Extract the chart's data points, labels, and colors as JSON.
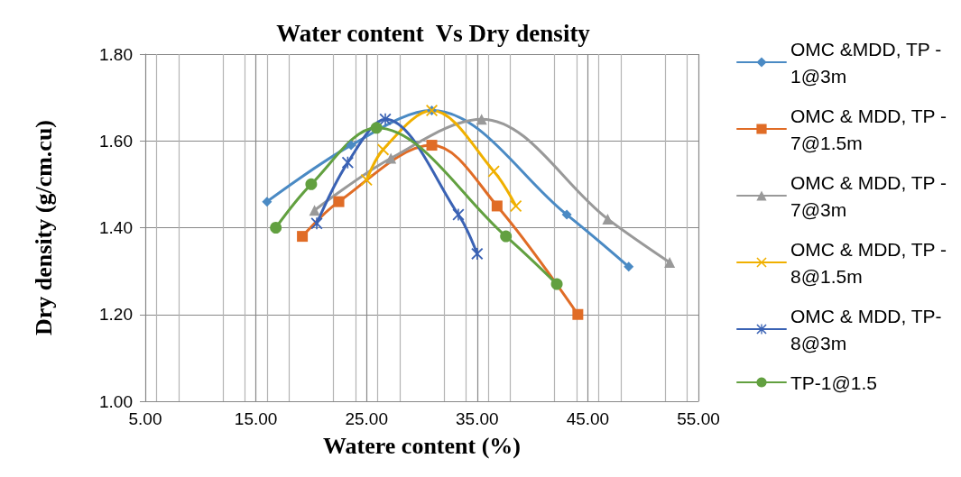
{
  "chart_data": {
    "type": "line",
    "title": "Water content  Vs Dry density",
    "xlabel": "Watere content (%)",
    "ylabel": "Dry density (g/cm.cu)",
    "xlim": [
      5,
      55
    ],
    "xticks": [
      {
        "value": 5,
        "label": "5.00"
      },
      {
        "value": 15,
        "label": "15.00"
      },
      {
        "value": 25,
        "label": "25.00"
      },
      {
        "value": 35,
        "label": "35.00"
      },
      {
        "value": 45,
        "label": "45.00"
      },
      {
        "value": 55,
        "label": "55.00"
      }
    ],
    "ylim": [
      1,
      1.8
    ],
    "yticks": [
      {
        "value": 1,
        "label": "1.00"
      },
      {
        "value": 1.2,
        "label": "1.20"
      },
      {
        "value": 1.4,
        "label": "1.40"
      },
      {
        "value": 1.6,
        "label": "1.60"
      },
      {
        "value": 1.8,
        "label": "1.80"
      }
    ],
    "grid": true,
    "legend": "right",
    "line_style": "solid",
    "series": [
      {
        "name": "OMC &MDD, TP - 1@3m",
        "color": "#4a8ac4",
        "marker": "diamond",
        "x": [
          16.0,
          23.6,
          30.9,
          43.1,
          48.7
        ],
        "values": [
          1.46,
          1.59,
          1.67,
          1.43,
          1.31
        ]
      },
      {
        "name": "OMC & MDD, TP - 7@1.5m",
        "color": "#e06c26",
        "marker": "square",
        "x": [
          19.2,
          22.5,
          30.9,
          36.8,
          44.1
        ],
        "values": [
          1.38,
          1.46,
          1.59,
          1.45,
          1.2
        ]
      },
      {
        "name": "OMC & MDD, TP - 7@3m",
        "color": "#999999",
        "marker": "triangle",
        "x": [
          20.3,
          27.2,
          35.4,
          46.8,
          52.4
        ],
        "values": [
          1.44,
          1.56,
          1.65,
          1.42,
          1.32
        ]
      },
      {
        "name": "OMC & MDD, TP - 8@1.5m",
        "color": "#f0b000",
        "marker": "cross",
        "x": [
          25.0,
          26.5,
          30.9,
          36.5,
          38.5
        ],
        "values": [
          1.51,
          1.58,
          1.67,
          1.53,
          1.45
        ]
      },
      {
        "name": "OMC & MDD, TP- 8@3m",
        "color": "#3a62b4",
        "marker": "star",
        "x": [
          20.5,
          23.3,
          26.7,
          33.3,
          35.0
        ],
        "values": [
          1.41,
          1.55,
          1.65,
          1.43,
          1.34
        ]
      },
      {
        "name": "TP-1@1.5",
        "color": "#62a040",
        "marker": "circle",
        "x": [
          16.8,
          20.0,
          25.9,
          37.6,
          42.2
        ],
        "values": [
          1.4,
          1.5,
          1.63,
          1.38,
          1.27
        ]
      }
    ]
  }
}
